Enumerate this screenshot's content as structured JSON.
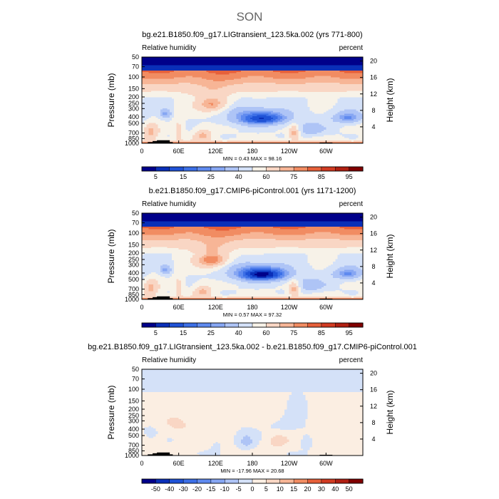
{
  "figure": {
    "title": "SON"
  },
  "colors": {
    "rh": [
      "#00008a",
      "#0a2fb8",
      "#1f52d6",
      "#3c6fe6",
      "#5f8aef",
      "#86a6f3",
      "#aec4f6",
      "#d4e1f8",
      "#f7f2e8",
      "#f9d6c4",
      "#f7b596",
      "#f18c62",
      "#e6603a",
      "#d13b22",
      "#b01f12",
      "#800000"
    ],
    "diff": [
      "#00008a",
      "#0a2fb8",
      "#1f52d6",
      "#3c6fe6",
      "#5f8aef",
      "#86a6f3",
      "#aec4f6",
      "#d4e1f8",
      "#fbeee2",
      "#f9d6c4",
      "#f7b596",
      "#f18c62",
      "#e6603a",
      "#d13b22",
      "#b01f12",
      "#800000"
    ]
  },
  "chart_data": [
    {
      "type": "heatmap",
      "panel_title": "bg.e21.B1850.f09_g17.LIGtransient_123.5ka.002 (yrs 771-800)",
      "left_label": "Relative humidity",
      "right_label": "percent",
      "ylabel": "Pressure (mb)",
      "y2label": "Height (km)",
      "xticks": [
        "0",
        "60E",
        "120E",
        "180",
        "120W",
        "60W"
      ],
      "xtick_lon": [
        0,
        60,
        120,
        180,
        240,
        300
      ],
      "xlim": [
        0,
        360
      ],
      "yticks": [
        "1000",
        "850",
        "700",
        "500",
        "400",
        "300",
        "250",
        "200",
        "150",
        "100",
        "70",
        "50"
      ],
      "yticks_values": [
        1000,
        850,
        700,
        500,
        400,
        300,
        250,
        200,
        150,
        100,
        70,
        50
      ],
      "y2ticks": [
        "4",
        "8",
        "12",
        "16",
        "20"
      ],
      "y2ticks_values": [
        4,
        8,
        12,
        16,
        20
      ],
      "ylim": [
        1000,
        50
      ],
      "stats": "MIN =    0.43   MAX =  98.16",
      "min": 0.43,
      "max": 98.16,
      "colorbar_ticks": [
        "5",
        "15",
        "25",
        "40",
        "60",
        "75",
        "85",
        "95"
      ],
      "levels": [
        5,
        10,
        15,
        20,
        25,
        30,
        40,
        50,
        60,
        70,
        75,
        80,
        85,
        90,
        95
      ],
      "palette": "rh",
      "field": "rh",
      "variant": 0
    },
    {
      "type": "heatmap",
      "panel_title": "b.e21.B1850.f09_g17.CMIP6-piControl.001 (yrs 1171-1200)",
      "left_label": "Relative humidity",
      "right_label": "percent",
      "ylabel": "Pressure (mb)",
      "y2label": "Height (km)",
      "xticks": [
        "0",
        "60E",
        "120E",
        "180",
        "120W",
        "60W"
      ],
      "xtick_lon": [
        0,
        60,
        120,
        180,
        240,
        300
      ],
      "xlim": [
        0,
        360
      ],
      "yticks": [
        "1000",
        "850",
        "700",
        "500",
        "400",
        "300",
        "250",
        "200",
        "150",
        "100",
        "70",
        "50"
      ],
      "yticks_values": [
        1000,
        850,
        700,
        500,
        400,
        300,
        250,
        200,
        150,
        100,
        70,
        50
      ],
      "y2ticks": [
        "4",
        "8",
        "12",
        "16",
        "20"
      ],
      "y2ticks_values": [
        4,
        8,
        12,
        16,
        20
      ],
      "ylim": [
        1000,
        50
      ],
      "stats": "MIN =    0.57   MAX =  97.32",
      "min": 0.57,
      "max": 97.32,
      "colorbar_ticks": [
        "5",
        "15",
        "25",
        "40",
        "60",
        "75",
        "85",
        "95"
      ],
      "levels": [
        5,
        10,
        15,
        20,
        25,
        30,
        40,
        50,
        60,
        70,
        75,
        80,
        85,
        90,
        95
      ],
      "palette": "rh",
      "field": "rh",
      "variant": 1
    },
    {
      "type": "heatmap",
      "panel_title": "bg.e21.B1850.f09_g17.LIGtransient_123.5ka.002 - b.e21.B1850.f09_g17.CMIP6-piControl.001",
      "left_label": "Relative humidity",
      "right_label": "percent",
      "ylabel": "Pressure (mb)",
      "y2label": "Height (km)",
      "xticks": [
        "0",
        "60E",
        "120E",
        "180",
        "120W",
        "60W"
      ],
      "xtick_lon": [
        0,
        60,
        120,
        180,
        240,
        300
      ],
      "xlim": [
        0,
        360
      ],
      "yticks": [
        "1000",
        "850",
        "700",
        "500",
        "400",
        "300",
        "250",
        "200",
        "150",
        "100",
        "70",
        "50"
      ],
      "yticks_values": [
        1000,
        850,
        700,
        500,
        400,
        300,
        250,
        200,
        150,
        100,
        70,
        50
      ],
      "y2ticks": [
        "4",
        "8",
        "12",
        "16",
        "20"
      ],
      "y2ticks_values": [
        4,
        8,
        12,
        16,
        20
      ],
      "ylim": [
        1000,
        50
      ],
      "stats": "MIN =  -17.96   MAX =  20.68",
      "min": -17.96,
      "max": 20.68,
      "colorbar_ticks": [
        "-50",
        "-40",
        "-30",
        "-20",
        "-15",
        "-10",
        "-5",
        "0",
        "5",
        "10",
        "15",
        "20",
        "30",
        "40",
        "50"
      ],
      "levels": [
        -50,
        -40,
        -30,
        -20,
        -15,
        -10,
        -5,
        0,
        5,
        10,
        15,
        20,
        30,
        40,
        50
      ],
      "palette": "diff",
      "field": "diff",
      "variant": 0
    }
  ]
}
